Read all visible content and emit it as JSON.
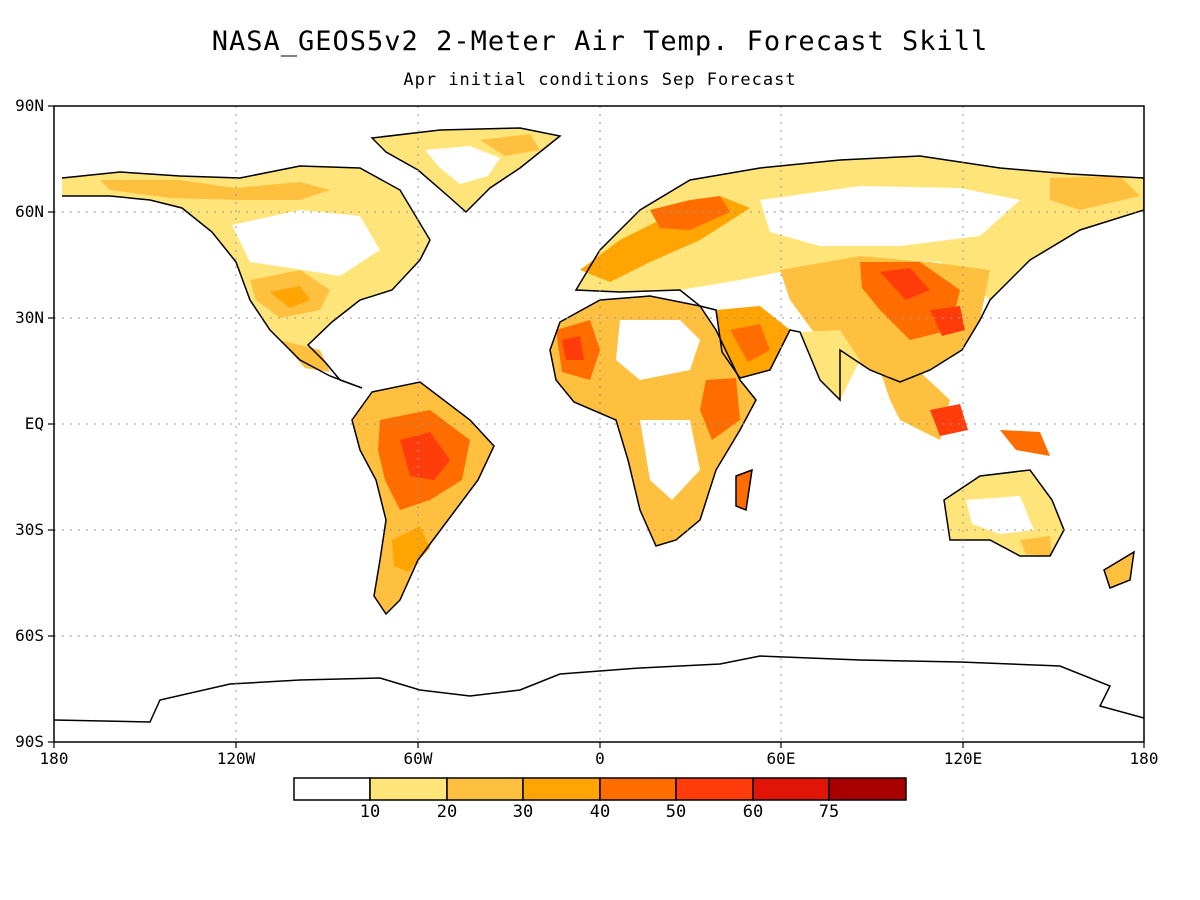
{
  "title": "NASA_GEOS5v2 2-Meter Air Temp. Forecast Skill",
  "subtitle": "Apr initial conditions  Sep Forecast",
  "lat_labels": [
    "90N",
    "60N",
    "30N",
    "EQ",
    "30S",
    "60S",
    "90S"
  ],
  "lon_labels": [
    "180",
    "120W",
    "60W",
    "0",
    "60E",
    "120E",
    "180"
  ],
  "colorbar": {
    "colors": [
      "#ffffff",
      "#ffe47a",
      "#ffc040",
      "#ffa400",
      "#ff6c00",
      "#ff3c0a",
      "#e01508",
      "#a80000"
    ],
    "labels": [
      "10",
      "20",
      "30",
      "40",
      "50",
      "60",
      "75"
    ]
  },
  "colors": {
    "coastline": "#000000",
    "grid": "#999999",
    "frame": "#000000"
  }
}
